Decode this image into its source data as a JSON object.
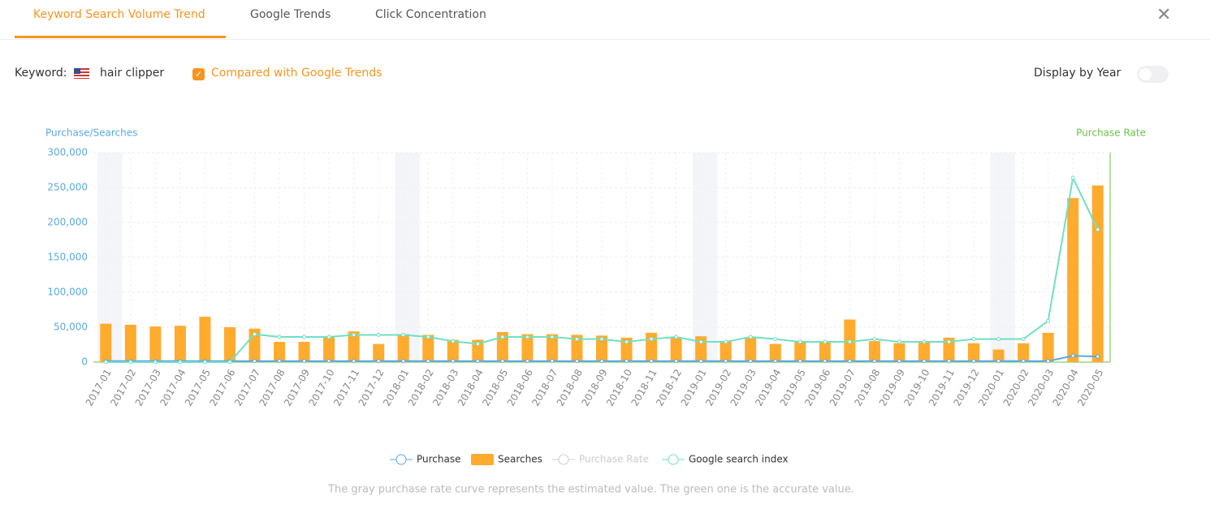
{
  "tabs": [
    "Keyword Search Volume Trend",
    "Google Trends",
    "Click Concentration"
  ],
  "keyword_label": "Keyword:",
  "keyword": "hair clipper",
  "compare_label": "Compared with Google Trends",
  "display_by_year": "Display by Year",
  "note": "The gray purchase rate curve represents the estimated value. The green one is the accurate value.",
  "chart_data": {
    "type": "bar_line",
    "y_label": "Purchase/Searches",
    "y2_label": "Purchase Rate",
    "categories": [
      "2017-01",
      "2017-02",
      "2017-03",
      "2017-04",
      "2017-05",
      "2017-06",
      "2017-07",
      "2017-08",
      "2017-09",
      "2017-10",
      "2017-11",
      "2017-12",
      "2018-01",
      "2018-02",
      "2018-03",
      "2018-04",
      "2018-05",
      "2018-06",
      "2018-07",
      "2018-08",
      "2018-09",
      "2018-10",
      "2018-11",
      "2018-12",
      "2019-01",
      "2019-02",
      "2019-03",
      "2019-04",
      "2019-05",
      "2019-06",
      "2019-07",
      "2019-08",
      "2019-09",
      "2019-10",
      "2019-11",
      "2019-12",
      "2020-01",
      "2020-02",
      "2020-03",
      "2020-04",
      "2020-05"
    ],
    "ylim": [
      0,
      300000
    ],
    "yticks": [
      0,
      {
        "value": 50000,
        "label": "50,000"
      },
      {
        "value": 100000,
        "label": "100,000"
      },
      {
        "value": 150000,
        "label": "150,000"
      },
      {
        "value": 200000,
        "label": "200,000"
      },
      {
        "value": 250000,
        "label": "250,000"
      },
      {
        "value": 300000,
        "label": "300,000"
      }
    ],
    "grid": true,
    "series": [
      {
        "name": "Purchase",
        "kind": "line",
        "color": "#5aa9e6",
        "values": [
          1500,
          1500,
          1500,
          1500,
          1500,
          1500,
          1500,
          1500,
          1500,
          1500,
          1500,
          1500,
          1500,
          1500,
          1500,
          1500,
          1500,
          1500,
          1500,
          1500,
          1500,
          1500,
          1500,
          1500,
          1500,
          1500,
          1500,
          1500,
          1500,
          1500,
          1500,
          1500,
          1500,
          1500,
          1500,
          1500,
          1500,
          1500,
          1500,
          9000,
          8000
        ]
      },
      {
        "name": "Searches",
        "kind": "bar",
        "color": "#ffab2e",
        "values": [
          55000,
          53500,
          51000,
          52000,
          65000,
          50000,
          48000,
          29000,
          29000,
          36000,
          44000,
          26000,
          40000,
          39000,
          32000,
          32000,
          43000,
          40000,
          40000,
          39000,
          38000,
          35000,
          42000,
          35000,
          37000,
          30000,
          35000,
          26000,
          30000,
          29000,
          61000,
          30000,
          27000,
          29000,
          35000,
          27000,
          18000,
          27000,
          42000,
          235000,
          253000
        ]
      },
      {
        "name": "Purchase Rate",
        "kind": "line",
        "color": "#cccccc",
        "axis": "y2",
        "hidden": true
      },
      {
        "name": "Google search index",
        "kind": "line",
        "color": "#6ee0c4",
        "values": [
          0,
          0,
          0,
          0,
          0,
          0,
          40000,
          36000,
          36000,
          36000,
          39000,
          39000,
          39000,
          36000,
          30000,
          26000,
          36000,
          36000,
          36000,
          33000,
          33000,
          29000,
          33000,
          36000,
          29000,
          29000,
          36000,
          33000,
          29000,
          29000,
          29000,
          33000,
          29000,
          29000,
          29000,
          33000,
          33000,
          33000,
          59000,
          264000,
          190000
        ]
      }
    ]
  }
}
